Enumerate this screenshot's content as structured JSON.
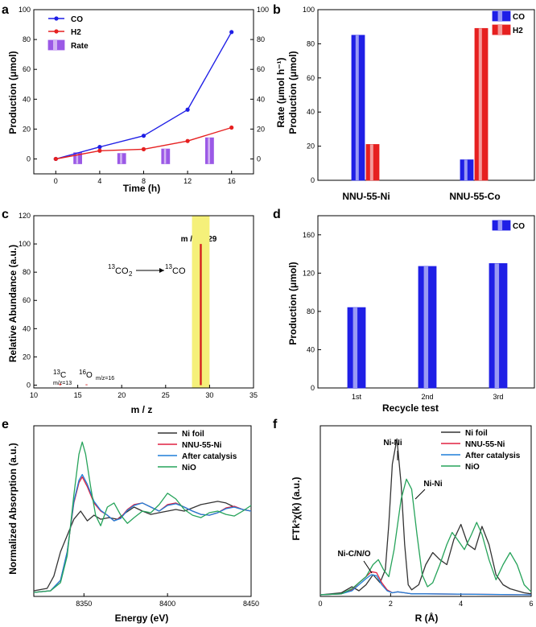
{
  "panels": {
    "a": "a",
    "b": "b",
    "c": "c",
    "d": "d",
    "e": "e",
    "f": "f"
  },
  "colors": {
    "co": "#1f1fe6",
    "h2": "#e62020",
    "rate": "#9b59e6",
    "nifoil": "#333333",
    "nnu": "#e02040",
    "after": "#1e7fd8",
    "nio": "#26a35a",
    "highlight": "#f5f07a",
    "peak": "#d42020"
  },
  "chart_data": [
    {
      "id": "a",
      "type": "line",
      "x": [
        0,
        4,
        8,
        12,
        16
      ],
      "series": [
        {
          "name": "CO",
          "values": [
            0,
            8,
            15.5,
            33,
            85
          ]
        },
        {
          "name": "H2",
          "values": [
            0,
            5.5,
            6.5,
            12,
            21
          ]
        }
      ],
      "bars": {
        "name": "Rate",
        "x": [
          2,
          6,
          10,
          14
        ],
        "values": [
          2,
          1.5,
          4.5,
          12
        ]
      },
      "xlabel": "Time (h)",
      "ylabel": "Production (μmol)",
      "y2label": "Rate (μmol h⁻¹)",
      "xlim": [
        -2,
        18
      ],
      "ylim": [
        -10,
        100
      ],
      "y2lim": [
        -10,
        100
      ],
      "xticks": [
        0,
        4,
        8,
        12,
        16
      ],
      "yticks": [
        0,
        20,
        40,
        60,
        80,
        100
      ],
      "legend": [
        "CO",
        "H2",
        "Rate"
      ]
    },
    {
      "id": "b",
      "type": "bar",
      "categories": [
        "NNU-55-Ni",
        "NNU-55-Co"
      ],
      "series": [
        {
          "name": "CO",
          "values": [
            85,
            12
          ]
        },
        {
          "name": "H2",
          "values": [
            21,
            89
          ]
        }
      ],
      "xlabel": "",
      "ylabel": "Production (μmol)",
      "ylim": [
        0,
        100
      ],
      "yticks": [
        0,
        20,
        40,
        60,
        80,
        100
      ],
      "legend": [
        "CO",
        "H2"
      ]
    },
    {
      "id": "c",
      "type": "bar",
      "x": [
        13,
        16,
        29
      ],
      "values": [
        1,
        0.5,
        100
      ],
      "xlabel": "m / z",
      "ylabel": "Relative Abundance (a.u.)",
      "xlim": [
        10,
        35
      ],
      "ylim": [
        -2,
        120
      ],
      "xticks": [
        10,
        15,
        20,
        25,
        30,
        35
      ],
      "yticks": [
        0,
        20,
        40,
        60,
        80,
        100,
        120
      ],
      "highlight_range": [
        28,
        30
      ],
      "annotations": {
        "peak": "m / z = 29",
        "reaction_from": "CO",
        "reaction_to": "CO",
        "mass": "13",
        "c13": "C",
        "c13_mz": "m/z=13",
        "o16": "O",
        "o16_mass": "16",
        "o16_mz": "m/z=16",
        "two": "2"
      }
    },
    {
      "id": "d",
      "type": "bar",
      "categories": [
        "1st",
        "2nd",
        "3rd"
      ],
      "values": [
        84,
        127,
        130
      ],
      "xlabel": "Recycle test",
      "ylabel": "Production (μmol)",
      "ylim": [
        0,
        180
      ],
      "yticks": [
        0,
        40,
        80,
        120,
        160
      ],
      "legend": [
        "CO"
      ]
    },
    {
      "id": "e",
      "type": "line",
      "xlabel": "Energy (eV)",
      "ylabel": "Normalized Absorption (a.u.)",
      "xlim": [
        8320,
        8450
      ],
      "xticks": [
        8350,
        8400,
        8450
      ],
      "legend": [
        "Ni foil",
        "NNU-55-Ni",
        "After catalysis",
        "NiO"
      ],
      "series": [
        {
          "name": "Ni foil",
          "x": [
            8320,
            8328,
            8332,
            8336,
            8340,
            8344,
            8348,
            8352,
            8356,
            8360,
            8365,
            8370,
            8375,
            8380,
            8385,
            8390,
            8395,
            8400,
            8405,
            8410,
            8415,
            8420,
            8425,
            8430,
            8435,
            8440,
            8445,
            8450
          ],
          "values": [
            0.02,
            0.05,
            0.2,
            0.5,
            0.7,
            0.9,
            1.0,
            0.88,
            0.95,
            0.9,
            0.92,
            0.9,
            0.98,
            1.05,
            1.0,
            0.96,
            0.98,
            1.0,
            1.02,
            1.0,
            1.04,
            1.08,
            1.1,
            1.12,
            1.1,
            1.05,
            1.02,
            1.0
          ]
        },
        {
          "name": "NNU-55-Ni",
          "x": [
            8320,
            8330,
            8336,
            8340,
            8344,
            8347,
            8349,
            8352,
            8356,
            8360,
            8364,
            8368,
            8372,
            8376,
            8380,
            8385,
            8390,
            8395,
            8400,
            8405,
            8410,
            8415,
            8420,
            8425,
            8430,
            8435,
            8440,
            8445,
            8450
          ],
          "values": [
            0.0,
            0.02,
            0.15,
            0.5,
            1.1,
            1.35,
            1.42,
            1.3,
            1.1,
            1.0,
            0.95,
            0.88,
            0.92,
            1.02,
            1.08,
            1.1,
            1.05,
            1.0,
            1.08,
            1.1,
            1.05,
            1.0,
            0.96,
            0.95,
            0.98,
            1.04,
            1.06,
            1.02,
            1.0
          ]
        },
        {
          "name": "After catalysis",
          "x": [
            8320,
            8330,
            8336,
            8340,
            8344,
            8347,
            8349,
            8352,
            8356,
            8360,
            8364,
            8368,
            8372,
            8376,
            8380,
            8385,
            8390,
            8395,
            8400,
            8405,
            8410,
            8415,
            8420,
            8425,
            8430,
            8435,
            8440,
            8445,
            8450
          ],
          "values": [
            0.0,
            0.02,
            0.15,
            0.5,
            1.12,
            1.38,
            1.45,
            1.33,
            1.12,
            1.01,
            0.95,
            0.88,
            0.91,
            1.01,
            1.07,
            1.1,
            1.05,
            1.0,
            1.07,
            1.09,
            1.05,
            1.0,
            0.96,
            0.95,
            0.98,
            1.03,
            1.05,
            1.02,
            1.0
          ]
        },
        {
          "name": "NiO",
          "x": [
            8320,
            8330,
            8336,
            8340,
            8344,
            8347,
            8349,
            8351,
            8354,
            8357,
            8360,
            8364,
            8368,
            8372,
            8376,
            8380,
            8385,
            8390,
            8395,
            8400,
            8405,
            8410,
            8415,
            8420,
            8425,
            8430,
            8435,
            8440,
            8445,
            8450
          ],
          "values": [
            0.0,
            0.02,
            0.12,
            0.45,
            1.2,
            1.7,
            1.85,
            1.7,
            1.3,
            0.95,
            0.82,
            1.05,
            1.1,
            0.95,
            0.85,
            0.92,
            1.0,
            0.98,
            1.08,
            1.22,
            1.15,
            1.02,
            0.95,
            0.92,
            0.98,
            1.0,
            0.96,
            0.94,
            1.0,
            1.07
          ]
        }
      ]
    },
    {
      "id": "f",
      "type": "line",
      "xlabel": "R (Å)",
      "ylabel": "FTk³χ(k) (a.u.)",
      "xlim": [
        0,
        6
      ],
      "xticks": [
        0,
        2,
        4,
        6
      ],
      "legend": [
        "Ni foil",
        "NNU-55-Ni",
        "After catalysis",
        "NiO"
      ],
      "annotations": {
        "nini1": "Ni-Ni",
        "nini2": "Ni-Ni",
        "nicno": "Ni-C/N/O"
      },
      "series": [
        {
          "name": "Ni foil",
          "x": [
            0,
            0.6,
            0.9,
            1.1,
            1.3,
            1.5,
            1.7,
            1.85,
            1.95,
            2.05,
            2.18,
            2.3,
            2.4,
            2.5,
            2.6,
            2.8,
            3.0,
            3.2,
            3.4,
            3.6,
            3.8,
            4.0,
            4.2,
            4.4,
            4.6,
            4.8,
            5.0,
            5.2,
            5.4,
            5.6,
            5.8,
            6.0
          ],
          "values": [
            0,
            0.02,
            0.08,
            0.04,
            0.1,
            0.2,
            0.12,
            0.25,
            0.7,
            1.3,
            1.55,
            1.1,
            0.5,
            0.1,
            0.05,
            0.1,
            0.3,
            0.42,
            0.35,
            0.3,
            0.55,
            0.7,
            0.5,
            0.45,
            0.68,
            0.5,
            0.2,
            0.1,
            0.06,
            0.04,
            0.02,
            0.01
          ]
        },
        {
          "name": "NNU-55-Ni",
          "x": [
            0,
            0.6,
            0.9,
            1.1,
            1.3,
            1.45,
            1.6,
            1.75,
            1.9,
            2.05,
            2.2,
            2.4,
            2.6,
            3.0,
            6.0
          ],
          "values": [
            0,
            0.01,
            0.05,
            0.12,
            0.18,
            0.23,
            0.22,
            0.12,
            0.05,
            0.02,
            0.03,
            0.02,
            0.01,
            0.01,
            0.0
          ]
        },
        {
          "name": "After catalysis",
          "x": [
            0,
            0.6,
            0.9,
            1.1,
            1.3,
            1.45,
            1.6,
            1.75,
            1.9,
            2.05,
            2.2,
            2.4,
            2.6,
            3.0,
            6.0
          ],
          "values": [
            0,
            0.01,
            0.04,
            0.1,
            0.16,
            0.2,
            0.19,
            0.1,
            0.04,
            0.02,
            0.03,
            0.02,
            0.01,
            0.01,
            0.0
          ]
        },
        {
          "name": "NiO",
          "x": [
            0,
            0.6,
            0.9,
            1.1,
            1.3,
            1.5,
            1.65,
            1.8,
            1.95,
            2.1,
            2.3,
            2.45,
            2.6,
            2.75,
            2.9,
            3.05,
            3.2,
            3.4,
            3.6,
            3.75,
            3.9,
            4.1,
            4.3,
            4.45,
            4.6,
            4.8,
            5.0,
            5.2,
            5.4,
            5.6,
            5.8,
            6.0
          ],
          "values": [
            0,
            0.01,
            0.06,
            0.12,
            0.18,
            0.3,
            0.35,
            0.25,
            0.18,
            0.45,
            0.95,
            1.15,
            1.05,
            0.6,
            0.2,
            0.08,
            0.12,
            0.3,
            0.5,
            0.62,
            0.55,
            0.45,
            0.6,
            0.72,
            0.6,
            0.35,
            0.15,
            0.3,
            0.42,
            0.3,
            0.1,
            0.03
          ]
        }
      ]
    }
  ]
}
